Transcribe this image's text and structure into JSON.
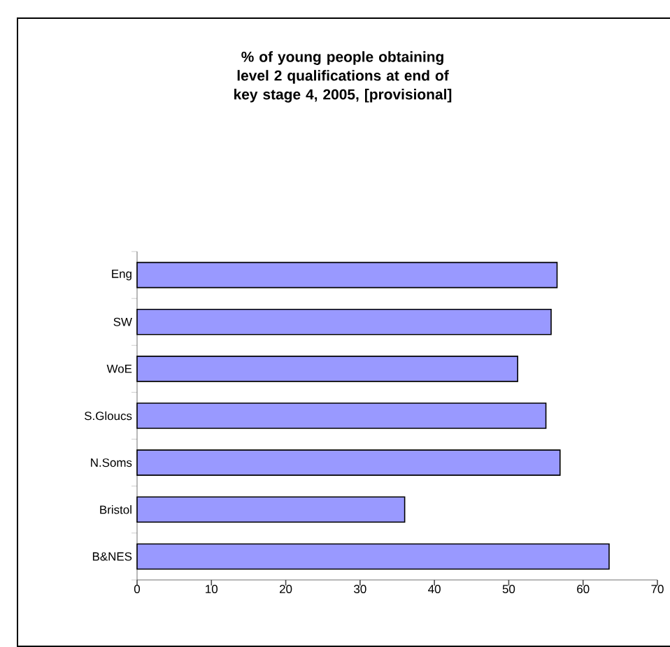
{
  "chart_data": {
    "type": "bar",
    "orientation": "horizontal",
    "title": "% of young people obtaining level 2 qualifications at end of key stage 4, 2005, [provisional]",
    "categories": [
      "Eng",
      "SW",
      "WoE",
      "S.Gloucs",
      "N.Soms",
      "Bristol",
      "B&NES"
    ],
    "values": [
      56.5,
      55.7,
      51.2,
      55.0,
      56.9,
      36.0,
      63.5
    ],
    "color": "#9999ff",
    "xlim": [
      0,
      70
    ],
    "xticks": [
      0,
      10,
      20,
      30,
      40,
      50,
      60,
      70
    ]
  }
}
